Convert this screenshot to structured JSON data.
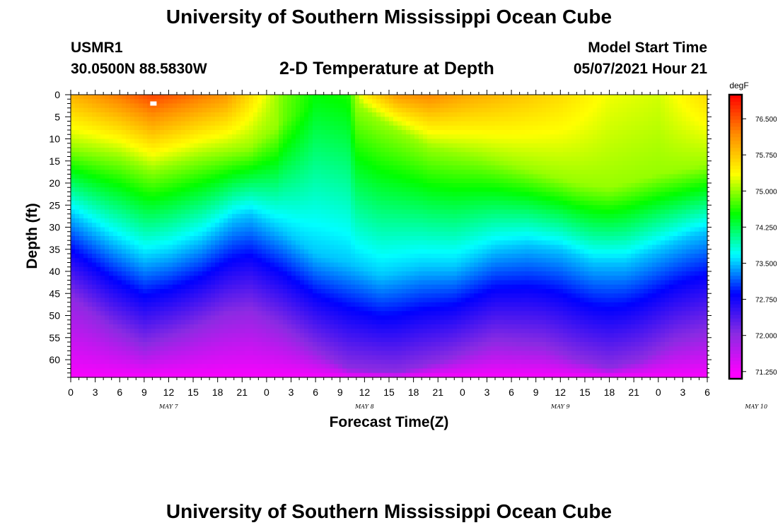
{
  "header": {
    "title": "University of Southern Mississippi Ocean Cube",
    "station_id": "USMR1",
    "coordinates": "30.0500N  88.5830W",
    "plot_title": "2-D Temperature at Depth",
    "model_start_label": "Model Start Time",
    "model_start_value": "05/07/2021 Hour 21"
  },
  "footer": {
    "title": "University of Southern Mississippi Ocean Cube"
  },
  "colors": {
    "ramp": [
      "#ff00ff",
      "#8a2be2",
      "#0000ff",
      "#00ffff",
      "#00ff00",
      "#ffff00",
      "#ff8c00",
      "#ff0000"
    ]
  },
  "chart_data": {
    "type": "heatmap",
    "title": "2-D Temperature at Depth",
    "xlabel": "Forecast Time(Z)",
    "ylabel": "Depth (ft)",
    "x_ticks": [
      "0",
      "3",
      "6",
      "9",
      "12",
      "15",
      "18",
      "21",
      "0",
      "3",
      "6",
      "9",
      "12",
      "15",
      "18",
      "21",
      "0",
      "3",
      "6",
      "9",
      "12",
      "15",
      "18",
      "21",
      "0",
      "3",
      "6"
    ],
    "date_labels": [
      {
        "text": "MAY 7",
        "hours": 12
      },
      {
        "text": "MAY 8",
        "hours": 36
      },
      {
        "text": "MAY 9",
        "hours": 60
      },
      {
        "text": "MAY 10",
        "hours": 84
      }
    ],
    "x_range_hours": [
      0,
      78
    ],
    "y_ticks": [
      0,
      5,
      10,
      15,
      20,
      25,
      30,
      35,
      40,
      45,
      50,
      55,
      60
    ],
    "y_range_ft": [
      0,
      64
    ],
    "colorbar": {
      "unit": "degF",
      "ticks": [
        76.5,
        75.75,
        75.0,
        74.25,
        73.5,
        72.75,
        72.0,
        71.25
      ],
      "tick_labels": [
        "76.500",
        "75.750",
        "75.000",
        "74.250",
        "73.500",
        "72.750",
        "72.000",
        "71.250"
      ],
      "range": [
        71.1,
        77.0
      ]
    },
    "surface_temperature": {
      "hours": [
        0,
        6,
        10,
        14,
        19,
        22,
        26,
        30,
        34,
        36,
        40,
        44,
        48,
        54,
        60,
        66,
        72,
        78
      ],
      "values": [
        75.9,
        76.3,
        76.6,
        76.4,
        76.1,
        75.6,
        74.9,
        74.5,
        74.6,
        75.5,
        76.1,
        76.2,
        76.0,
        75.8,
        75.6,
        75.3,
        75.2,
        75.6
      ]
    },
    "isotherm_75_depth_ft": {
      "hours": [
        0,
        6,
        10,
        16,
        19,
        22,
        26,
        30,
        34,
        38,
        44,
        50,
        56,
        62,
        66,
        72,
        78
      ],
      "values": [
        12,
        14,
        17,
        14,
        13,
        12,
        6,
        2,
        1,
        6,
        12,
        14,
        17,
        20,
        21,
        18,
        16
      ]
    },
    "isotherm_73_5_depth_ft": {
      "hours": [
        0,
        5,
        9,
        12,
        16,
        20,
        22,
        26,
        30,
        34,
        38,
        43,
        47,
        52,
        56,
        60,
        64,
        68,
        72,
        76,
        78
      ],
      "values": [
        27,
        33,
        37,
        36,
        33,
        28,
        27,
        31,
        36,
        38,
        41,
        39,
        39,
        35,
        34,
        35,
        38,
        38,
        35,
        32,
        31
      ]
    },
    "isotherm_72_depth_ft": {
      "hours": [
        0,
        5,
        9,
        14,
        19,
        22,
        26,
        30,
        34,
        40,
        46,
        52,
        58,
        62,
        66,
        70,
        74,
        78
      ],
      "values": [
        46,
        53,
        57,
        54,
        50,
        49,
        53,
        58,
        62,
        63,
        60,
        56,
        57,
        60,
        62,
        60,
        56,
        54
      ]
    },
    "marker": {
      "hours": 10,
      "depth_ft": 2
    }
  }
}
